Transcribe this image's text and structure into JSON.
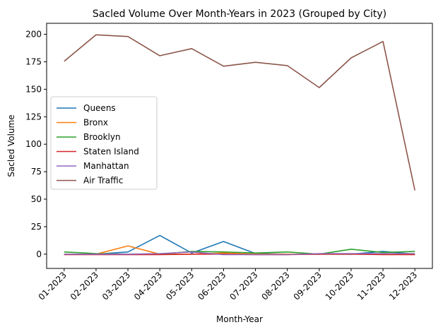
{
  "chart_data": {
    "type": "line",
    "title": "Sacled Volume Over Month-Years in 2023 (Grouped by City)",
    "xlabel": "Month-Year",
    "ylabel": "Sacled Volume",
    "categories": [
      "01-2023",
      "02-2023",
      "03-2023",
      "04-2023",
      "05-2023",
      "06-2023",
      "07-2023",
      "08-2023",
      "09-2023",
      "10-2023",
      "11-2023",
      "12-2023"
    ],
    "ylim": [
      -13,
      210
    ],
    "yticks": [
      0,
      25,
      50,
      75,
      100,
      125,
      150,
      175,
      200
    ],
    "grid": false,
    "legend_position": "center-left",
    "series": [
      {
        "name": "Queens",
        "color": "#1f77b4",
        "values": [
          0,
          0,
          2,
          17,
          1,
          11.5,
          0.5,
          0,
          0,
          0,
          2.5,
          0
        ]
      },
      {
        "name": "Bronx",
        "color": "#ff7f0e",
        "values": [
          0,
          0,
          7.5,
          0,
          0,
          1,
          0,
          0,
          0,
          0,
          0,
          0
        ]
      },
      {
        "name": "Brooklyn",
        "color": "#2ca02c",
        "values": [
          2,
          0.5,
          0,
          0,
          2.5,
          2,
          1,
          2,
          0,
          4.5,
          1.5,
          2.5
        ]
      },
      {
        "name": "Staten Island",
        "color": "#d62728",
        "values": [
          -0.5,
          -0.5,
          -0.5,
          -0.5,
          0,
          0,
          -0.5,
          -0.5,
          0,
          0,
          -0.5,
          -0.5
        ]
      },
      {
        "name": "Manhattan",
        "color": "#9467bd",
        "values": [
          0,
          0,
          0,
          0.5,
          2,
          -0.5,
          -0.5,
          -0.5,
          0.5,
          0.5,
          0.5,
          0.5
        ]
      },
      {
        "name": "Air Traffic",
        "color": "#8c564b",
        "values": [
          175.5,
          199.5,
          198,
          180.5,
          187,
          171,
          174.5,
          171.5,
          151.5,
          178.5,
          193.5,
          58
        ]
      }
    ]
  }
}
